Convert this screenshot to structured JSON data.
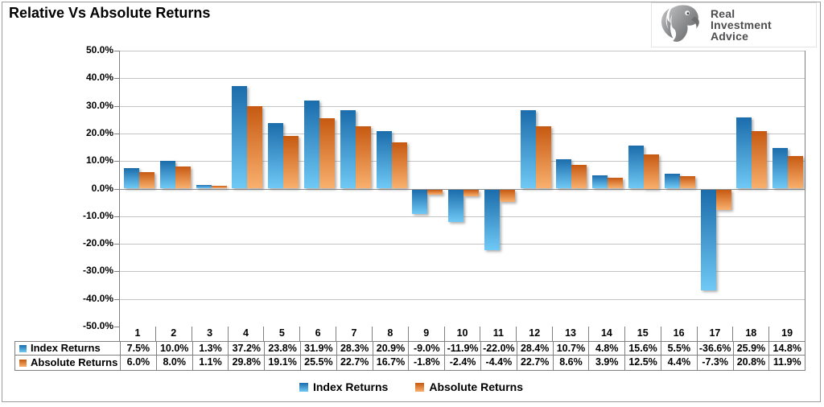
{
  "title": "Relative Vs Absolute Returns",
  "logo": {
    "icon": "eagle-icon",
    "lines": [
      "Real",
      "Investment",
      "Advice"
    ]
  },
  "chart_data": {
    "type": "bar",
    "title": "Relative Vs Absolute Returns",
    "categories": [
      "1",
      "2",
      "3",
      "4",
      "5",
      "6",
      "7",
      "8",
      "9",
      "10",
      "11",
      "12",
      "13",
      "14",
      "15",
      "16",
      "17",
      "18",
      "19"
    ],
    "series": [
      {
        "name": "Index Returns",
        "color_top": "#1b6cab",
        "color_bottom": "#6fc9f5",
        "values": [
          7.5,
          10.0,
          1.3,
          37.2,
          23.8,
          31.9,
          28.3,
          20.9,
          -9.0,
          -11.9,
          -22.0,
          28.4,
          10.7,
          4.8,
          15.6,
          5.5,
          -36.6,
          25.9,
          14.8
        ]
      },
      {
        "name": "Absolute Returns",
        "color_top": "#c65911",
        "color_bottom": "#f9b06e",
        "values": [
          6.0,
          8.0,
          1.1,
          29.8,
          19.1,
          25.5,
          22.7,
          16.7,
          -1.8,
          -2.4,
          -4.4,
          22.7,
          8.6,
          3.9,
          12.5,
          4.4,
          -7.3,
          20.8,
          11.9
        ]
      }
    ],
    "ylim": [
      -50,
      50
    ],
    "ytick_step": 10,
    "ytick_labels": [
      "50.0%",
      "40.0%",
      "30.0%",
      "20.0%",
      "10.0%",
      "0.0%",
      "-10.0%",
      "-20.0%",
      "-30.0%",
      "-40.0%",
      "-50.0%"
    ],
    "value_suffix": "%",
    "grid": true,
    "legend_position": "bottom",
    "data_table_shown": true
  },
  "colors": {
    "grid": "#c4c4c4",
    "axis": "#808080",
    "zero_line": "#8f8f8f",
    "table_border": "#808080",
    "frame_border": "#9c9c9c",
    "logo_text": "#4c4d4f"
  }
}
